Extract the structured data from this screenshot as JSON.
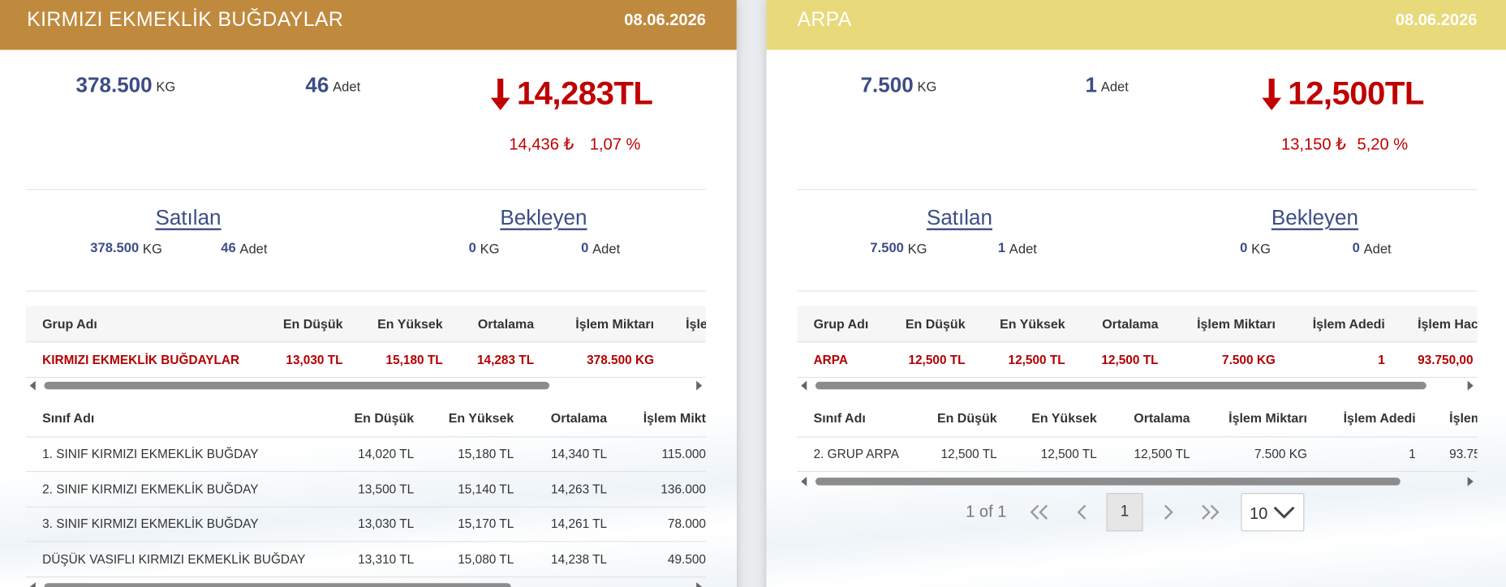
{
  "cards": [
    {
      "title": "KIRMIZI EKMEKLİK BUĞDAYLAR",
      "date": "08.06.2026",
      "summary": {
        "kg": "378.500",
        "kg_unit": "KG",
        "count": "46",
        "count_unit": "Adet",
        "price": "14,283TL",
        "previous_price": "14,436 ₺",
        "change": "1,07 %"
      },
      "sold": {
        "label": "Satılan",
        "kg": "378.500",
        "kg_unit": "KG",
        "count": "46",
        "count_unit": "Adet"
      },
      "pending": {
        "label": "Bekleyen",
        "kg": "0",
        "kg_unit": "KG",
        "count": "0",
        "count_unit": "Adet"
      },
      "group_table": {
        "headers": [
          "Grup Adı",
          "En Düşük",
          "En Yüksek",
          "Ortalama",
          "İşlem Miktarı",
          "İşle"
        ],
        "rows": [
          [
            "KIRMIZI EKMEKLİK BUĞDAYLAR",
            "13,030 TL",
            "15,180 TL",
            "14,283 TL",
            "378.500 KG"
          ]
        ]
      },
      "class_table": {
        "headers": [
          "Sınıf Adı",
          "En Düşük",
          "En Yüksek",
          "Ortalama",
          "İşlem Mikt"
        ],
        "rows": [
          [
            "1. SINIF KIRMIZI EKMEKLİK BUĞDAY",
            "14,020 TL",
            "15,180 TL",
            "14,340 TL",
            "115.000"
          ],
          [
            "2. SINIF KIRMIZI EKMEKLİK BUĞDAY",
            "13,500 TL",
            "15,140 TL",
            "14,263 TL",
            "136.000"
          ],
          [
            "3. SINIF KIRMIZI EKMEKLİK BUĞDAY",
            "13,030 TL",
            "15,170 TL",
            "14,261 TL",
            "78.000"
          ],
          [
            "DÜŞÜK VASIFLI KIRMIZI EKMEKLİK BUĞDAY",
            "13,310 TL",
            "15,080 TL",
            "14,238 TL",
            "49.500"
          ]
        ]
      }
    },
    {
      "title": "ARPA",
      "date": "08.06.2026",
      "summary": {
        "kg": "7.500",
        "kg_unit": "KG",
        "count": "1",
        "count_unit": "Adet",
        "price": "12,500TL",
        "previous_price": "13,150 ₺",
        "change": "5,20 %"
      },
      "sold": {
        "label": "Satılan",
        "kg": "7.500",
        "kg_unit": "KG",
        "count": "1",
        "count_unit": "Adet"
      },
      "pending": {
        "label": "Bekleyen",
        "kg": "0",
        "kg_unit": "KG",
        "count": "0",
        "count_unit": "Adet"
      },
      "group_table": {
        "headers": [
          "Grup Adı",
          "En Düşük",
          "En Yüksek",
          "Ortalama",
          "İşlem Miktarı",
          "İşlem Adedi",
          "İşlem Hac"
        ],
        "rows": [
          [
            "ARPA",
            "12,500 TL",
            "12,500 TL",
            "12,500 TL",
            "7.500 KG",
            "1",
            "93.750,00"
          ]
        ]
      },
      "class_table": {
        "headers": [
          "Sınıf Adı",
          "En Düşük",
          "En Yüksek",
          "Ortalama",
          "İşlem Miktarı",
          "İşlem Adedi",
          "İşlem"
        ],
        "rows": [
          [
            "2. GRUP ARPA",
            "12,500 TL",
            "12,500 TL",
            "12,500 TL",
            "7.500 KG",
            "1",
            "93.75"
          ]
        ]
      },
      "pagination": {
        "summary": "1 of 1",
        "page": "1",
        "page_size": "10"
      }
    }
  ]
}
